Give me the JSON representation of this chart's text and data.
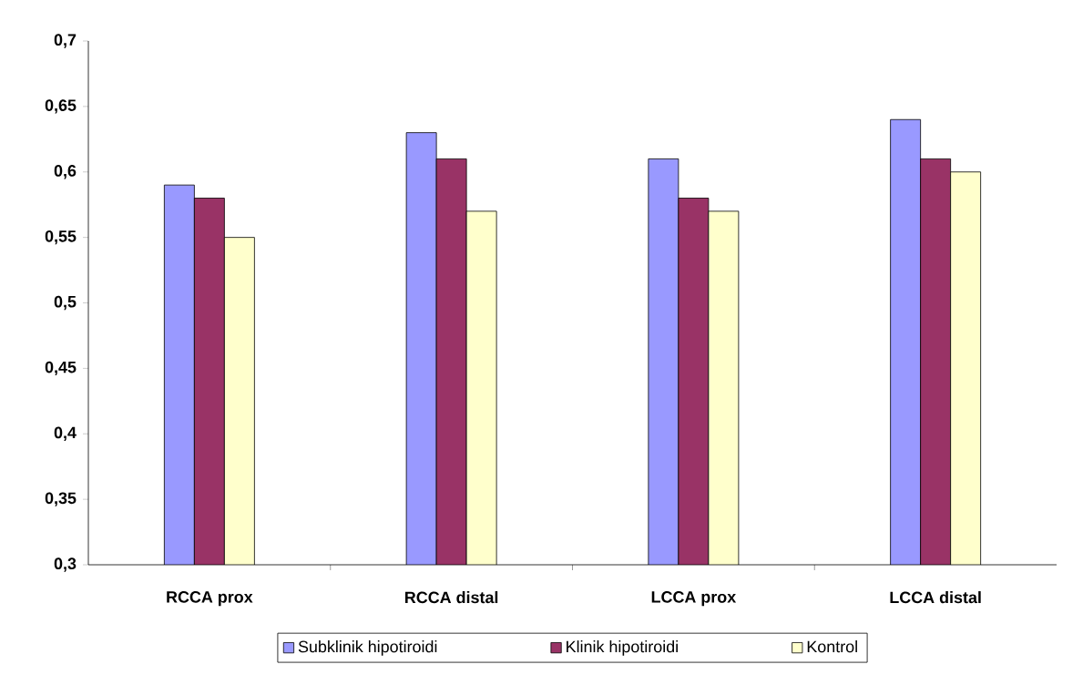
{
  "chart_data": {
    "type": "bar",
    "categories": [
      "RCCA prox",
      "RCCA distal",
      "LCCA prox",
      "LCCA distal"
    ],
    "series": [
      {
        "name": "Subklinik hipotiroidi",
        "color": "#9999ff",
        "values": [
          0.59,
          0.63,
          0.61,
          0.64
        ]
      },
      {
        "name": "Klinik hipotiroidi",
        "color": "#993366",
        "values": [
          0.58,
          0.61,
          0.58,
          0.61
        ]
      },
      {
        "name": "Kontrol",
        "color": "#ffffcc",
        "values": [
          0.55,
          0.57,
          0.57,
          0.6
        ]
      }
    ],
    "ylim": [
      0.3,
      0.7
    ],
    "yticks": [
      {
        "value": 0.3,
        "label": "0,3"
      },
      {
        "value": 0.35,
        "label": "0,35"
      },
      {
        "value": 0.4,
        "label": "0,4"
      },
      {
        "value": 0.45,
        "label": "0,45"
      },
      {
        "value": 0.5,
        "label": "0,5"
      },
      {
        "value": 0.55,
        "label": "0,55"
      },
      {
        "value": 0.6,
        "label": "0,6"
      },
      {
        "value": 0.65,
        "label": "0,65"
      },
      {
        "value": 0.7,
        "label": "0,7"
      }
    ],
    "grid": false,
    "legend": "bottom"
  }
}
